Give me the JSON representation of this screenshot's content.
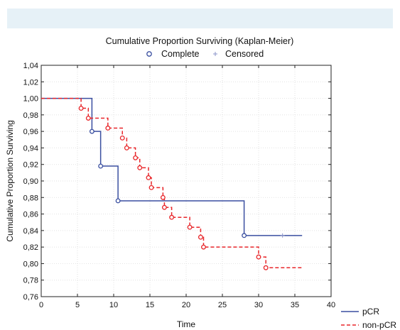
{
  "chart_data": {
    "type": "line",
    "title": "Cumulative Proportion Surviving (Kaplan-Meier)",
    "xlabel": "Time",
    "ylabel": "Cumulative Proportion Surviving",
    "xlim": [
      0,
      40
    ],
    "ylim": [
      0.76,
      1.04
    ],
    "x_ticks": [
      0,
      5,
      10,
      15,
      20,
      25,
      30,
      35,
      40
    ],
    "y_ticks": [
      0.76,
      0.78,
      0.8,
      0.82,
      0.84,
      0.86,
      0.88,
      0.9,
      0.92,
      0.94,
      0.96,
      0.98,
      1.0,
      1.02,
      1.04
    ],
    "x_tick_labels": [
      "0",
      "5",
      "10",
      "15",
      "20",
      "25",
      "30",
      "35",
      "40"
    ],
    "y_tick_labels": [
      "0,76",
      "0,78",
      "0,80",
      "0,82",
      "0,84",
      "0,86",
      "0,88",
      "0,90",
      "0,92",
      "0,94",
      "0,96",
      "0,98",
      "1,00",
      "1,02",
      "1,04"
    ],
    "grid": true,
    "marker_legend": [
      {
        "label": "Complete",
        "marker": "circle"
      },
      {
        "label": "Censored",
        "marker": "plus"
      }
    ],
    "legend_placement": "top-center and bottom-right",
    "series": [
      {
        "name": "pCR",
        "color": "#3a4fa0",
        "line_style": "solid",
        "steps": [
          [
            0,
            1.0
          ],
          [
            7,
            0.96
          ],
          [
            8.2,
            0.918
          ],
          [
            10.6,
            0.876
          ],
          [
            28,
            0.834
          ],
          [
            36,
            0.834
          ]
        ],
        "complete": [
          [
            7,
            0.96
          ],
          [
            8.2,
            0.918
          ],
          [
            10.6,
            0.876
          ],
          [
            28,
            0.834
          ]
        ],
        "censored": [
          [
            33.3,
            0.834
          ]
        ]
      },
      {
        "name": "non-pCR",
        "color": "#e8262a",
        "line_style": "dashed",
        "steps": [
          [
            0,
            1.0
          ],
          [
            5.5,
            0.988
          ],
          [
            6.5,
            0.976
          ],
          [
            9.2,
            0.964
          ],
          [
            11.2,
            0.952
          ],
          [
            11.8,
            0.94
          ],
          [
            13.0,
            0.928
          ],
          [
            13.6,
            0.916
          ],
          [
            14.8,
            0.904
          ],
          [
            15.2,
            0.892
          ],
          [
            16.8,
            0.88
          ],
          [
            17.0,
            0.868
          ],
          [
            18.0,
            0.856
          ],
          [
            20.5,
            0.844
          ],
          [
            22.0,
            0.832
          ],
          [
            22.4,
            0.82
          ],
          [
            30.0,
            0.808
          ],
          [
            31.0,
            0.795
          ],
          [
            36.0,
            0.795
          ]
        ],
        "complete": [
          [
            5.5,
            0.988
          ],
          [
            6.5,
            0.976
          ],
          [
            9.2,
            0.964
          ],
          [
            11.2,
            0.952
          ],
          [
            11.8,
            0.94
          ],
          [
            13.0,
            0.928
          ],
          [
            13.6,
            0.916
          ],
          [
            14.8,
            0.904
          ],
          [
            15.2,
            0.892
          ],
          [
            16.8,
            0.88
          ],
          [
            17.0,
            0.868
          ],
          [
            18.0,
            0.856
          ],
          [
            20.5,
            0.844
          ],
          [
            22.0,
            0.832
          ],
          [
            22.4,
            0.82
          ],
          [
            30.0,
            0.808
          ],
          [
            31.0,
            0.795
          ]
        ],
        "censored": []
      }
    ]
  }
}
